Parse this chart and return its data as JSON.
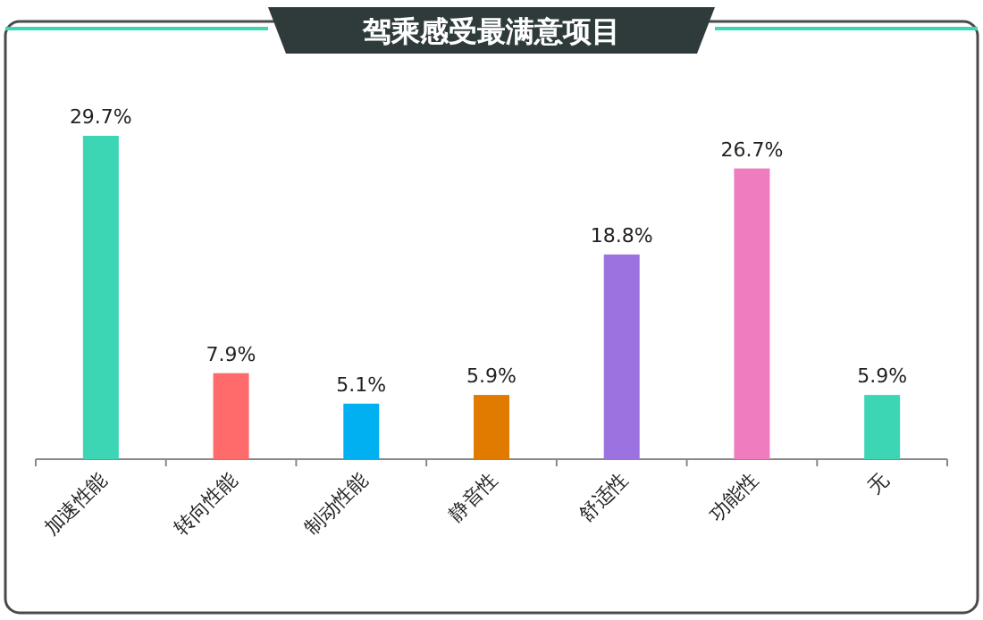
{
  "chart_data": {
    "type": "bar",
    "title": "驾乘感受最满意项目",
    "categories": [
      "加速性能",
      "转向性能",
      "制动性能",
      "静音性",
      "舒适性",
      "功能性",
      "无"
    ],
    "values": [
      29.7,
      7.9,
      5.1,
      5.9,
      18.8,
      26.7,
      5.9
    ],
    "colors": [
      "#3dd6b5",
      "#ff6b6b",
      "#00b0f0",
      "#e07b00",
      "#9b72e0",
      "#f07cc0",
      "#3dd6b5"
    ],
    "value_labels": [
      "29.7%",
      "7.9%",
      "5.1%",
      "5.9%",
      "18.8%",
      "26.7%",
      "5.9%"
    ]
  }
}
